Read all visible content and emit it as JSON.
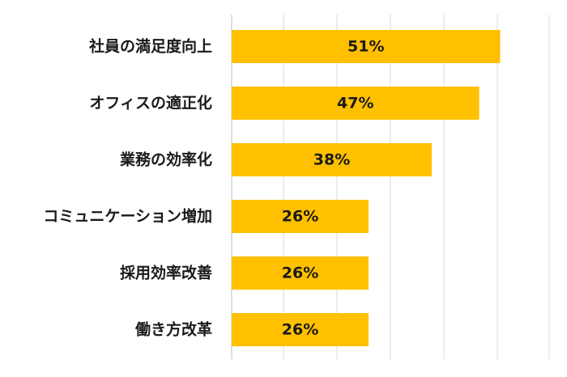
{
  "chart_data": {
    "type": "bar",
    "orientation": "horizontal",
    "categories": [
      "社員の満足度向上",
      "オフィスの適正化",
      "業務の効率化",
      "コミュニケーション増加",
      "採用効率改善",
      "働き方改革"
    ],
    "values": [
      51,
      47,
      38,
      26,
      26,
      26
    ],
    "value_labels": [
      "51%",
      "47%",
      "38%",
      "26%",
      "26%",
      "26%"
    ],
    "value_unit": "%",
    "xlim": [
      0,
      60
    ],
    "grid": true,
    "title": "",
    "xlabel": "",
    "ylabel": "",
    "bar_color": "#FFC000"
  }
}
